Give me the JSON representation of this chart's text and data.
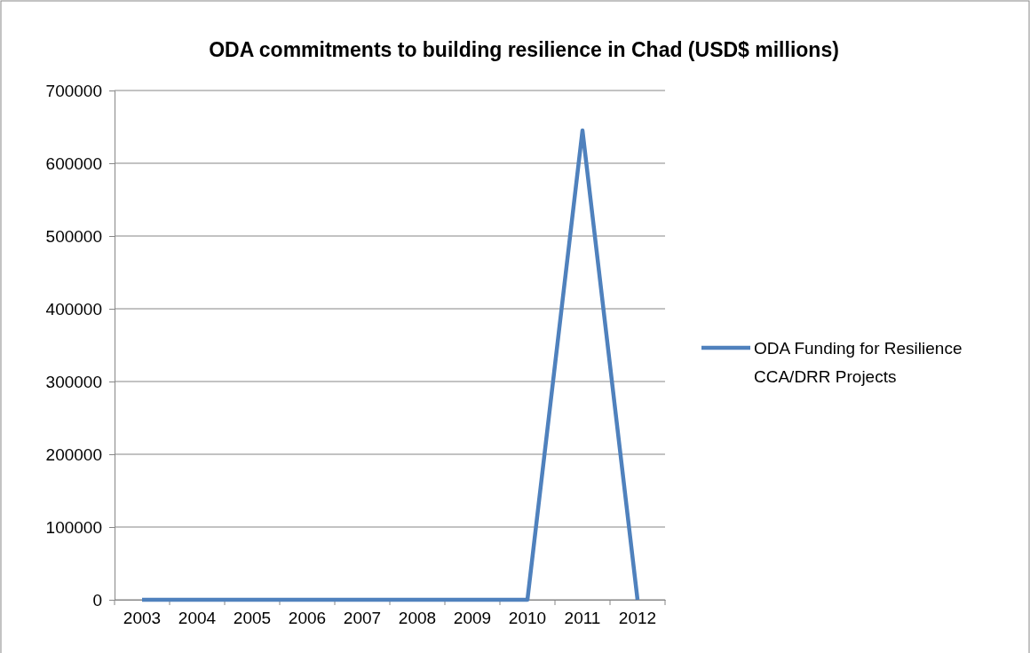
{
  "chart_data": {
    "type": "line",
    "title": "ODA commitments to building resilience in Chad (USD$ millions)",
    "categories": [
      "2003",
      "2004",
      "2005",
      "2006",
      "2007",
      "2008",
      "2009",
      "2010",
      "2011",
      "2012"
    ],
    "series": [
      {
        "name": "ODA Funding for Resilience CCA/DRR Projects",
        "color": "#4f81bd",
        "values": [
          0,
          0,
          0,
          0,
          0,
          0,
          0,
          0,
          645000,
          0
        ]
      }
    ],
    "ylim": [
      0,
      700000
    ],
    "yticks": [
      0,
      100000,
      200000,
      300000,
      400000,
      500000,
      600000,
      700000
    ],
    "grid": "y",
    "legend": "right",
    "marker": "none",
    "line_style": "solid"
  }
}
